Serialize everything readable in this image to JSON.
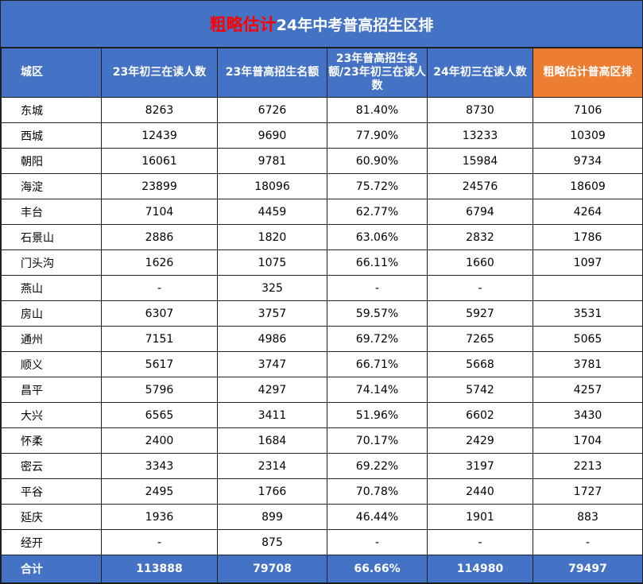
{
  "title": {
    "highlight": "粗略估计",
    "main": "24年中考普高招生区排"
  },
  "headers": [
    "城区",
    "23年初三在读人数",
    "23年普高招生名额",
    "23年普高招生名额/23年初三在读人数",
    "24年初三在读人数",
    "粗略估计普高区排"
  ],
  "colors": {
    "header_blue": "#4472c4",
    "header_orange": "#ed7d31",
    "title_highlight": "#ff0000"
  },
  "rows": [
    [
      "东城",
      "8263",
      "6726",
      "81.40%",
      "8730",
      "7106"
    ],
    [
      "西城",
      "12439",
      "9690",
      "77.90%",
      "13233",
      "10309"
    ],
    [
      "朝阳",
      "16061",
      "9781",
      "60.90%",
      "15984",
      "9734"
    ],
    [
      "海淀",
      "23899",
      "18096",
      "75.72%",
      "24576",
      "18609"
    ],
    [
      "丰台",
      "7104",
      "4459",
      "62.77%",
      "6794",
      "4264"
    ],
    [
      "石景山",
      "2886",
      "1820",
      "63.06%",
      "2832",
      "1786"
    ],
    [
      "门头沟",
      "1626",
      "1075",
      "66.11%",
      "1660",
      "1097"
    ],
    [
      "燕山",
      "-",
      "325",
      "-",
      "-",
      ""
    ],
    [
      "房山",
      "6307",
      "3757",
      "59.57%",
      "5927",
      "3531"
    ],
    [
      "通州",
      "7151",
      "4986",
      "69.72%",
      "7265",
      "5065"
    ],
    [
      "顺义",
      "5617",
      "3747",
      "66.71%",
      "5668",
      "3781"
    ],
    [
      "昌平",
      "5796",
      "4297",
      "74.14%",
      "5742",
      "4257"
    ],
    [
      "大兴",
      "6565",
      "3411",
      "51.96%",
      "6602",
      "3430"
    ],
    [
      "怀柔",
      "2400",
      "1684",
      "70.17%",
      "2429",
      "1704"
    ],
    [
      "密云",
      "3343",
      "2314",
      "69.22%",
      "3197",
      "2213"
    ],
    [
      "平谷",
      "2495",
      "1766",
      "70.78%",
      "2440",
      "1727"
    ],
    [
      "延庆",
      "1936",
      "899",
      "46.44%",
      "1901",
      "883"
    ],
    [
      "经开",
      "-",
      "875",
      "-",
      "-",
      "-"
    ]
  ],
  "total": [
    "合计",
    "113888",
    "79708",
    "66.66%",
    "114980",
    "79497"
  ]
}
